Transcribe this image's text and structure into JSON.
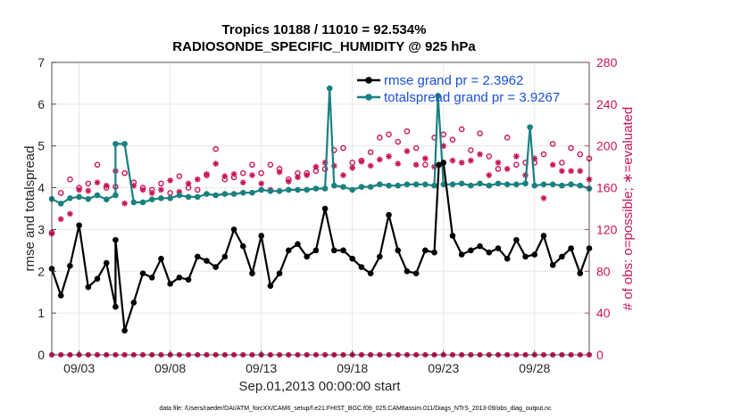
{
  "chart_data": {
    "type": "line",
    "title_line1": "Tropics 10188 / 11010 = 92.534%",
    "title_line2": "RADIOSONDE_SPECIFIC_HUMIDITY @ 925 hPa",
    "xlabel": "Sep.01,2013 00:00:00 start",
    "ylabel_left": "rmse and totalspread",
    "ylabel_right": "# of obs: o=possible; ∗=evaluated",
    "xlim": [
      1.5,
      31
    ],
    "ylim_left": [
      0,
      7
    ],
    "ylim_right": [
      0,
      280
    ],
    "x_ticks": [
      {
        "value": 3,
        "label": "09/03"
      },
      {
        "value": 8,
        "label": "09/08"
      },
      {
        "value": 13,
        "label": "09/13"
      },
      {
        "value": 18,
        "label": "09/18"
      },
      {
        "value": 23,
        "label": "09/23"
      },
      {
        "value": 28,
        "label": "09/28"
      }
    ],
    "y_ticks_left": [
      "0",
      "1",
      "2",
      "3",
      "4",
      "5",
      "6",
      "7"
    ],
    "y_ticks_right": [
      "0",
      "40",
      "80",
      "120",
      "160",
      "200",
      "240",
      "280"
    ],
    "legend": [
      {
        "label": "rmse grand pr = 2.3962",
        "color": "#000000"
      },
      {
        "label": "totalspread grand pr = 3.9267",
        "color": "#1a8080"
      }
    ],
    "colors": {
      "rmse": "#000000",
      "spread": "#1a8080",
      "obs": "#c8145a"
    },
    "x": [
      1.5,
      2,
      2.5,
      3,
      3.5,
      4,
      4.5,
      5,
      5.5,
      6,
      6.5,
      7,
      7.5,
      8,
      8.5,
      9,
      9.5,
      10,
      10.5,
      11,
      11.5,
      12,
      12.5,
      13,
      13.5,
      14,
      14.5,
      15,
      15.5,
      16,
      16.5,
      17,
      17.5,
      18,
      18.5,
      19,
      19.5,
      20,
      20.5,
      21,
      21.5,
      22,
      22.5,
      23,
      23.5,
      24,
      24.5,
      25,
      25.5,
      26,
      26.5,
      27,
      27.5,
      28,
      28.5,
      29,
      29.5,
      30,
      30.5,
      31
    ],
    "series": [
      {
        "name": "rmse",
        "values": [
          2.06,
          1.42,
          2.13,
          3.1,
          1.62,
          1.82,
          2.2,
          1.15,
          0.58,
          1.25,
          1.95,
          1.85,
          2.3,
          1.7,
          1.85,
          1.8,
          2.35,
          2.25,
          2.1,
          2.35,
          3.0,
          2.6,
          1.95,
          2.85,
          1.65,
          1.95,
          2.5,
          2.65,
          2.35,
          2.5,
          3.5,
          2.5,
          2.5,
          2.3,
          2.1,
          1.95,
          2.35,
          3.35,
          2.5,
          2.0,
          1.95,
          2.5,
          2.45,
          4.6,
          2.85,
          2.4,
          2.5,
          2.6,
          2.45,
          2.55,
          2.3,
          2.75,
          2.35,
          2.4,
          2.85,
          2.15,
          2.35,
          2.55,
          1.95,
          2.55
        ]
      },
      {
        "name": "totalspread",
        "values": [
          3.73,
          3.62,
          3.75,
          3.78,
          3.73,
          3.82,
          3.72,
          3.82,
          5.05,
          3.65,
          3.65,
          3.72,
          3.75,
          3.75,
          3.82,
          3.78,
          3.78,
          3.85,
          3.82,
          3.85,
          3.85,
          3.88,
          3.88,
          3.95,
          3.92,
          3.92,
          3.95,
          3.95,
          3.95,
          3.98,
          3.98,
          4.05,
          4.02,
          3.95,
          4.02,
          4.02,
          4.08,
          4.05,
          4.05,
          4.08,
          4.08,
          4.08,
          4.05,
          4.08,
          4.08,
          4.1,
          4.05,
          4.1,
          4.05,
          4.1,
          4.08,
          4.08,
          4.1,
          4.05,
          4.08,
          4.08,
          4.05,
          4.08,
          4.05,
          3.98
        ]
      },
      {
        "name": "obs_possible",
        "values": [
          117,
          155,
          168,
          160,
          164,
          182,
          160,
          161,
          174,
          165,
          160,
          158,
          164,
          155,
          171,
          160,
          158,
          172,
          197,
          168,
          170,
          174,
          182,
          174,
          182,
          178,
          168,
          174,
          174,
          176,
          178,
          196,
          198,
          184,
          186,
          194,
          208,
          211,
          204,
          214,
          198,
          182,
          208,
          211,
          206,
          216,
          196,
          212,
          190,
          178,
          208,
          182,
          184,
          184,
          192,
          202,
          184,
          198,
          192,
          188
        ]
      },
      {
        "name": "obs_evaluated",
        "values": [
          116,
          130,
          135,
          158,
          157,
          165,
          162,
          176,
          145,
          162,
          158,
          155,
          158,
          167,
          156,
          164,
          168,
          173,
          183,
          171,
          173,
          165,
          172,
          164,
          158,
          175,
          166,
          170,
          172,
          180,
          184,
          181,
          172,
          179,
          185,
          181,
          187,
          190,
          183,
          195,
          182,
          188,
          180,
          200,
          186,
          184,
          186,
          192,
          172,
          184,
          178,
          190,
          172,
          188,
          150,
          182,
          176,
          176,
          176,
          168
        ]
      }
    ],
    "spikes_rmse": [
      {
        "x": 5.0,
        "y": 2.75
      },
      {
        "x": 22.75,
        "y": 4.55
      }
    ],
    "spikes_spread": [
      {
        "x": 5.0,
        "y": 5.05
      },
      {
        "x": 16.75,
        "y": 6.38
      },
      {
        "x": 22.7,
        "y": 6.2
      },
      {
        "x": 27.75,
        "y": 5.45
      }
    ],
    "zero_line_count": 0
  },
  "footer": "data file: /Users/raeder/DAI/ATM_forcXX/CAM6_setup/f.e21.FHIST_BGC.f09_025.CAM6assim.011/Diags_NTrS_2013-09/obs_diag_output.nc"
}
